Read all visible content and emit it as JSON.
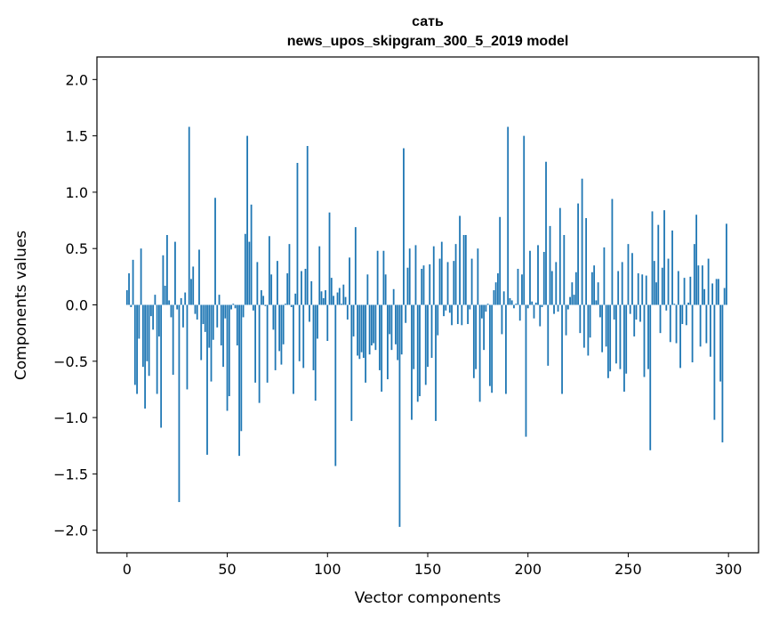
{
  "chart_data": {
    "type": "bar",
    "title": "сать",
    "subtitle": "news_upos_skipgram_300_5_2019 model",
    "xlabel": "Vector components",
    "ylabel": "Components values",
    "xlim": [
      -15,
      315
    ],
    "ylim": [
      -2.2,
      2.2
    ],
    "xticks": [
      0,
      50,
      100,
      150,
      200,
      250,
      300
    ],
    "xtick_labels": [
      "0",
      "50",
      "100",
      "150",
      "200",
      "250",
      "300"
    ],
    "yticks": [
      -2.0,
      -1.5,
      -1.0,
      -0.5,
      0.0,
      0.5,
      1.0,
      1.5,
      2.0
    ],
    "ytick_labels": [
      "−2.0",
      "−1.5",
      "−1.0",
      "−0.5",
      "0.0",
      "0.5",
      "1.0",
      "1.5",
      "2.0"
    ],
    "bar_color": "#1f77b4",
    "grid": false,
    "x": "indices 0..299",
    "values": [
      0.13,
      0.28,
      -0.02,
      0.4,
      -0.71,
      -0.79,
      -0.3,
      0.5,
      -0.55,
      -0.92,
      -0.5,
      -0.63,
      -0.1,
      -0.22,
      0.09,
      -0.79,
      -0.28,
      -1.09,
      0.44,
      0.17,
      0.62,
      0.04,
      -0.11,
      -0.62,
      0.56,
      -0.04,
      -1.75,
      0.06,
      -0.2,
      0.11,
      -0.75,
      1.58,
      0.23,
      0.34,
      -0.08,
      -0.13,
      0.49,
      -0.49,
      -0.17,
      -0.24,
      -1.33,
      -0.38,
      -0.68,
      -0.31,
      0.95,
      -0.2,
      0.09,
      -0.36,
      -0.55,
      -0.12,
      -0.94,
      -0.81,
      -0.04,
      0.01,
      -0.03,
      -0.36,
      -1.34,
      -1.12,
      -0.11,
      0.63,
      1.5,
      0.56,
      0.89,
      -0.05,
      -0.69,
      0.38,
      -0.87,
      0.13,
      0.08,
      -0.01,
      -0.69,
      0.61,
      0.27,
      -0.22,
      -0.58,
      0.39,
      -0.41,
      -0.53,
      -0.35,
      0.01,
      0.28,
      0.54,
      -0.02,
      -0.79,
      0.1,
      1.26,
      -0.5,
      0.3,
      -0.56,
      0.32,
      1.41,
      -0.15,
      0.21,
      -0.58,
      -0.85,
      -0.3,
      0.52,
      0.12,
      0.06,
      0.13,
      -0.32,
      0.82,
      0.24,
      0.08,
      -1.43,
      0.11,
      0.15,
      0.01,
      0.18,
      0.07,
      -0.13,
      0.42,
      -1.03,
      -0.28,
      0.69,
      -0.45,
      -0.48,
      -0.42,
      -0.47,
      -0.69,
      0.27,
      -0.44,
      -0.36,
      -0.34,
      -0.4,
      0.48,
      -0.58,
      -0.77,
      0.48,
      0.27,
      -0.66,
      -0.26,
      -0.4,
      0.14,
      -0.35,
      -0.49,
      -1.97,
      -0.44,
      1.39,
      -0.16,
      0.33,
      0.5,
      -1.02,
      -0.57,
      0.53,
      -0.86,
      -0.81,
      0.32,
      0.35,
      -0.71,
      -0.55,
      0.36,
      -0.47,
      0.52,
      -1.03,
      -0.27,
      0.41,
      0.56,
      -0.1,
      -0.05,
      0.38,
      -0.07,
      -0.18,
      0.39,
      0.54,
      -0.17,
      0.79,
      -0.18,
      0.62,
      0.62,
      -0.17,
      -0.04,
      0.41,
      -0.65,
      -0.57,
      0.5,
      -0.86,
      -0.12,
      -0.4,
      -0.06,
      0.01,
      -0.72,
      -0.78,
      0.13,
      0.2,
      0.28,
      0.78,
      -0.26,
      0.12,
      -0.79,
      1.58,
      0.06,
      0.04,
      -0.03,
      0.01,
      0.32,
      -0.14,
      0.27,
      1.5,
      -1.17,
      -0.03,
      0.48,
      0.03,
      -0.12,
      0.02,
      0.53,
      -0.19,
      -0.02,
      0.47,
      1.27,
      -0.54,
      0.7,
      0.3,
      -0.08,
      0.38,
      -0.06,
      0.86,
      -0.79,
      0.62,
      -0.27,
      -0.04,
      0.07,
      0.2,
      0.09,
      0.29,
      0.9,
      -0.25,
      1.12,
      -0.38,
      0.77,
      -0.45,
      -0.29,
      0.29,
      0.35,
      0.04,
      0.2,
      -0.11,
      -0.42,
      0.51,
      -0.37,
      -0.65,
      -0.59,
      0.94,
      -0.13,
      -0.52,
      0.3,
      -0.57,
      0.38,
      -0.77,
      -0.61,
      0.54,
      -0.08,
      0.46,
      -0.28,
      -0.13,
      0.28,
      -0.15,
      0.27,
      -0.64,
      0.26,
      -0.57,
      -1.29,
      0.83,
      0.39,
      0.2,
      0.71,
      -0.25,
      0.33,
      0.84,
      -0.05,
      0.41,
      -0.33,
      0.66,
      0.01,
      -0.34,
      0.3,
      -0.56,
      -0.17,
      0.24,
      -0.18,
      0.02,
      0.25,
      -0.51,
      0.54,
      0.8,
      0.35,
      -0.37,
      0.35,
      0.14,
      -0.34,
      0.41,
      -0.46,
      0.19,
      -1.02,
      0.23,
      0.23,
      -0.68,
      -1.22,
      0.15,
      0.72
    ]
  }
}
